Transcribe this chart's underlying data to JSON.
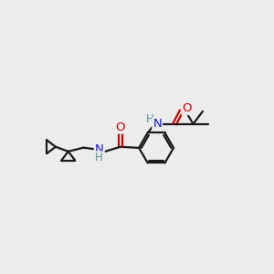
{
  "bg_color": "#ececec",
  "line_color": "#1a1a1a",
  "N_color": "#1414cc",
  "O_color": "#cc0000",
  "H_color": "#5a9090",
  "line_width": 1.6,
  "figsize": [
    3.0,
    3.0
  ],
  "dpi": 100,
  "xlim": [
    0,
    10
  ],
  "ylim": [
    0,
    10
  ]
}
